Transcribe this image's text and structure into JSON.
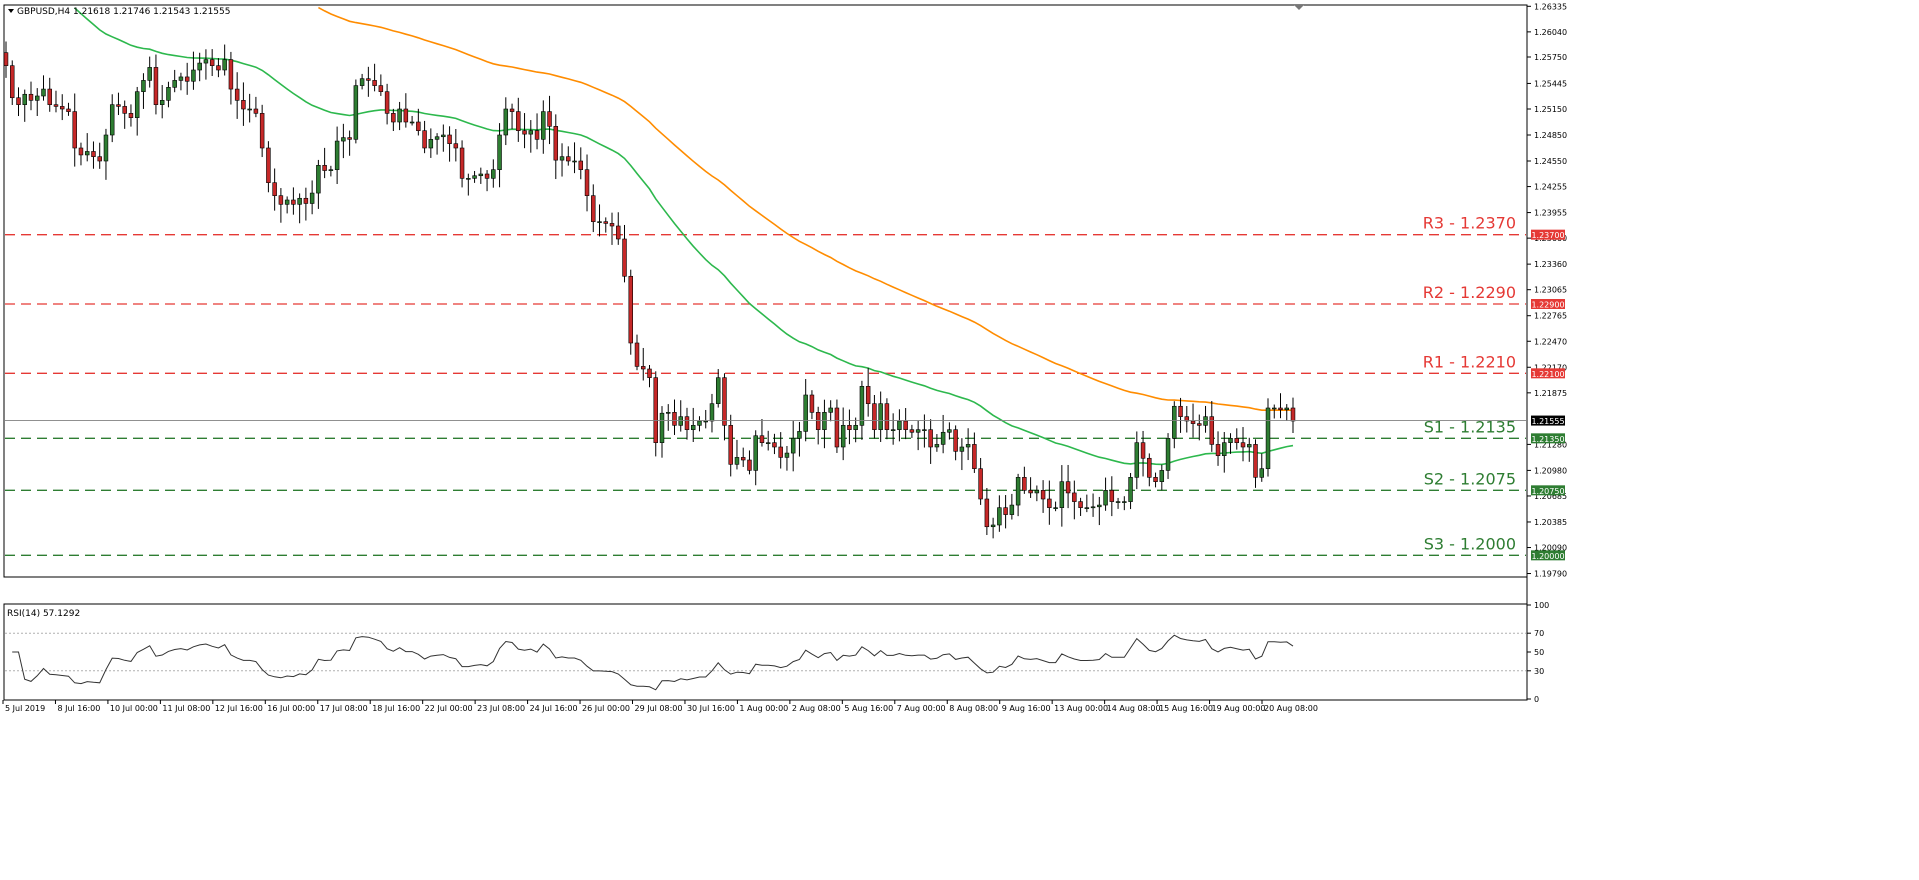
{
  "window": {
    "symbol_header": "GBPUSD,H4  1.21618 1.21746 1.21543 1.21555",
    "indicator_header": "RSI(14) 57.1292"
  },
  "colors": {
    "background": "#ffffff",
    "bull_candle": "#2e7d32",
    "bear_candle": "#c62828",
    "ma_fast": "#2db84d",
    "ma_slow": "#ff8c00",
    "resistance": "#e53935",
    "support": "#2e7d32",
    "current_price_line": "#808080",
    "rsi_line": "#333333"
  },
  "chart_data": {
    "type": "candlestick",
    "symbol": "GBPUSD",
    "timeframe": "H4",
    "ohlc_header": {
      "open": 1.21618,
      "high": 1.21746,
      "low": 1.21543,
      "close": 1.21555
    },
    "price_axis": {
      "ylim": [
        1.1975,
        1.2635
      ],
      "tick_labels": [
        "1.26335",
        "1.26040",
        "1.25750",
        "1.25445",
        "1.25150",
        "1.24850",
        "1.24550",
        "1.24255",
        "1.23955",
        "1.23660",
        "1.23360",
        "1.23065",
        "1.22765",
        "1.22470",
        "1.22170",
        "1.21875",
        "1.21280",
        "1.20980",
        "1.20685",
        "1.20385",
        "1.20090",
        "1.19790"
      ]
    },
    "time_axis": {
      "tick_labels": [
        "5 Jul 2019",
        "8 Jul 16:00",
        "10 Jul 00:00",
        "11 Jul 08:00",
        "12 Jul 16:00",
        "16 Jul 00:00",
        "17 Jul 08:00",
        "18 Jul 16:00",
        "22 Jul 00:00",
        "23 Jul 08:00",
        "24 Jul 16:00",
        "26 Jul 00:00",
        "29 Jul 08:00",
        "30 Jul 16:00",
        "1 Aug 00:00",
        "2 Aug 08:00",
        "5 Aug 16:00",
        "7 Aug 00:00",
        "8 Aug 08:00",
        "9 Aug 16:00",
        "13 Aug 00:00",
        "14 Aug 08:00",
        "15 Aug 16:00",
        "19 Aug 00:00",
        "20 Aug 08:00"
      ]
    },
    "levels": [
      {
        "name": "R3",
        "label": "R3 - 1.2370",
        "value": 1.237,
        "tag": "1.23700",
        "kind": "resistance"
      },
      {
        "name": "R2",
        "label": "R2 - 1.2290",
        "value": 1.229,
        "tag": "1.22900",
        "kind": "resistance"
      },
      {
        "name": "R1",
        "label": "R1 - 1.2210",
        "value": 1.221,
        "tag": "1.22100",
        "kind": "resistance"
      },
      {
        "name": "S1",
        "label": "S1 - 1.2135",
        "value": 1.2135,
        "tag": "1.21350",
        "kind": "support"
      },
      {
        "name": "S2",
        "label": "S2 - 1.2075",
        "value": 1.2075,
        "tag": "1.20750",
        "kind": "support"
      },
      {
        "name": "S3",
        "label": "S3 - 1.2000",
        "value": 1.2,
        "tag": "1.20000",
        "kind": "support"
      }
    ],
    "current_price": {
      "value": 1.21555,
      "tag": "1.21555"
    },
    "close_series": [
      1.2565,
      1.2528,
      1.252,
      1.2532,
      1.2525,
      1.253,
      1.2538,
      1.252,
      1.2518,
      1.2515,
      1.2512,
      1.247,
      1.2462,
      1.2466,
      1.246,
      1.2455,
      1.2485,
      1.252,
      1.2518,
      1.251,
      1.2505,
      1.2535,
      1.2548,
      1.2563,
      1.252,
      1.2525,
      1.254,
      1.2548,
      1.2552,
      1.2547,
      1.256,
      1.2568,
      1.2572,
      1.2565,
      1.256,
      1.2572,
      1.2538,
      1.2525,
      1.2515,
      1.2515,
      1.251,
      1.247,
      1.243,
      1.2415,
      1.2405,
      1.241,
      1.2405,
      1.2412,
      1.2406,
      1.2418,
      1.245,
      1.2444,
      1.2445,
      1.2478,
      1.2482,
      1.248,
      1.2542,
      1.255,
      1.2548,
      1.2542,
      1.2535,
      1.251,
      1.25,
      1.2515,
      1.25,
      1.25,
      1.249,
      1.247,
      1.248,
      1.2483,
      1.2485,
      1.2475,
      1.247,
      1.2435,
      1.2435,
      1.2438,
      1.244,
      1.2435,
      1.2445,
      1.2485,
      1.2515,
      1.2512,
      1.249,
      1.2486,
      1.249,
      1.248,
      1.2512,
      1.2495,
      1.2456,
      1.246,
      1.2455,
      1.2455,
      1.2445,
      1.2415,
      1.2385,
      1.2385,
      1.2383,
      1.238,
      1.2365,
      1.2322,
      1.2245,
      1.2218,
      1.2215,
      1.2205,
      1.213,
      1.2164,
      1.2165,
      1.215,
      1.216,
      1.2145,
      1.215,
      1.2155,
      1.2155,
      1.2175,
      1.2205,
      1.215,
      1.2105,
      1.2113,
      1.211,
      1.2098,
      1.2138,
      1.213,
      1.213,
      1.2125,
      1.2113,
      1.2118,
      1.2135,
      1.2143,
      1.2185,
      1.2165,
      1.2145,
      1.2165,
      1.217,
      1.2125,
      1.215,
      1.2145,
      1.215,
      1.2195,
      1.2175,
      1.2145,
      1.2175,
      1.2145,
      1.2145,
      1.2155,
      1.2145,
      1.2142,
      1.2145,
      1.2145,
      1.2125,
      1.2128,
      1.2142,
      1.2145,
      1.212,
      1.2125,
      1.2128,
      1.21,
      1.2065,
      1.2033,
      1.2035,
      1.2055,
      1.2047,
      1.2058,
      1.209,
      1.2075,
      1.2072,
      1.2075,
      1.2065,
      1.2055,
      1.2055,
      1.2085,
      1.2072,
      1.2062,
      1.2055,
      1.2055,
      1.2056,
      1.2058,
      1.2075,
      1.2062,
      1.2062,
      1.2062,
      1.209,
      1.213,
      1.2112,
      1.209,
      1.2085,
      1.2098,
      1.2135,
      1.2172,
      1.216,
      1.2155,
      1.2152,
      1.215,
      1.216,
      1.2128,
      1.2115,
      1.213,
      1.2135,
      1.213,
      1.2125,
      1.2128,
      1.209,
      1.21,
      1.217,
      1.217,
      1.2168,
      1.217,
      1.2155
    ],
    "rsi": {
      "period": 14,
      "value": 57.1292,
      "ylim": [
        0,
        100
      ],
      "levels": [
        30,
        70
      ],
      "tick_labels": [
        "100",
        "70",
        "50",
        "30",
        "0"
      ]
    },
    "moving_averages": [
      {
        "color": "green"
      },
      {
        "color": "orange"
      }
    ]
  }
}
